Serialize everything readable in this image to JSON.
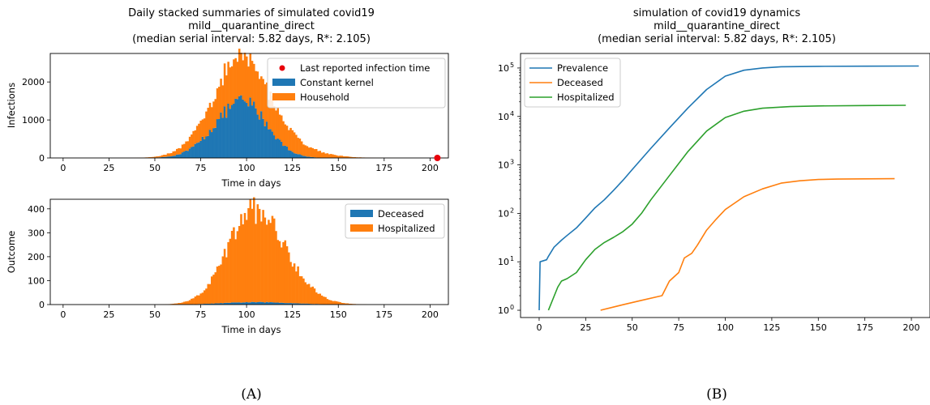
{
  "chart_data": [
    {
      "id": "infections",
      "type": "bar",
      "stacked": true,
      "title_lines": [
        "Daily stacked summaries of simulated covid19",
        "mild__quarantine_direct",
        "(median serial interval: 5.82 days, R*: 2.105)"
      ],
      "xlabel": "Time in days",
      "ylabel": "Infections",
      "xlim": [
        -7,
        210
      ],
      "ylim": [
        0,
        2750
      ],
      "xticks": [
        0,
        25,
        50,
        75,
        100,
        125,
        150,
        175,
        200
      ],
      "yticks": [
        0,
        1000,
        2000
      ],
      "legend_position": "top-right",
      "series": [
        {
          "name": "Constant kernel",
          "color": "#1f77b4",
          "peak_x": 98,
          "peak_y": 1480,
          "sigma_left": 15,
          "sigma_right": 13
        },
        {
          "name": "Household",
          "color": "#ff7f0e",
          "peak_x": 97,
          "peak_y": 1150,
          "sigma_left": 17,
          "sigma_right": 22
        }
      ],
      "marker": {
        "name": "Last reported infection time",
        "x": 204,
        "y": 0,
        "color": "#e8000b"
      }
    },
    {
      "id": "outcome",
      "type": "bar",
      "stacked": true,
      "xlabel": "Time in days",
      "ylabel": "Outcome",
      "xlim": [
        -7,
        210
      ],
      "ylim": [
        0,
        440
      ],
      "xticks": [
        0,
        25,
        50,
        75,
        100,
        125,
        150,
        175,
        200
      ],
      "yticks": [
        0,
        100,
        200,
        300,
        400
      ],
      "legend_position": "top-right",
      "series": [
        {
          "name": "Deceased",
          "color": "#1f77b4",
          "peak_x": 105,
          "peak_y": 10,
          "sigma_left": 18,
          "sigma_right": 20
        },
        {
          "name": "Hospitalized",
          "color": "#ff7f0e",
          "peak_x": 104,
          "peak_y": 385,
          "sigma_left": 14,
          "sigma_right": 17
        }
      ]
    },
    {
      "id": "dynamics",
      "type": "line",
      "yscale": "log",
      "title_lines": [
        "simulation of covid19 dynamics",
        "mild__quarantine_direct",
        "(median serial interval: 5.82 days, R*: 2.105)"
      ],
      "xlim": [
        -10,
        210
      ],
      "ylim_log10": [
        -0.15,
        5.3
      ],
      "xticks": [
        0,
        25,
        50,
        75,
        100,
        125,
        150,
        175,
        200
      ],
      "ytick_labels": [
        "10",
        "10",
        "10",
        "10",
        "10",
        "10"
      ],
      "ytick_exponents": [
        "0",
        "1",
        "2",
        "3",
        "4",
        "5"
      ],
      "legend_position": "top-left",
      "series": [
        {
          "name": "Prevalence",
          "color": "#1f77b4",
          "x": [
            0,
            0.5,
            4,
            5,
            8,
            12,
            15,
            20,
            25,
            30,
            35,
            40,
            45,
            50,
            60,
            70,
            80,
            90,
            100,
            110,
            120,
            130,
            150,
            175,
            204
          ],
          "y": [
            1,
            10,
            11,
            13,
            20,
            28,
            35,
            50,
            80,
            130,
            190,
            300,
            480,
            800,
            2200,
            5800,
            15000,
            36000,
            68000,
            90000,
            100000,
            106000,
            108000,
            109000,
            110000
          ]
        },
        {
          "name": "Deceased",
          "color": "#ff7f0e",
          "x": [
            33,
            45,
            55,
            66,
            70,
            75,
            78,
            82,
            85,
            90,
            95,
            100,
            110,
            120,
            130,
            140,
            150,
            160,
            175,
            191
          ],
          "y": [
            1,
            1.3,
            1.6,
            2,
            4,
            6,
            12,
            15,
            22,
            45,
            75,
            120,
            220,
            320,
            420,
            470,
            500,
            510,
            515,
            520
          ]
        },
        {
          "name": "Hospitalized",
          "color": "#2ca02c",
          "x": [
            5,
            10,
            12,
            15,
            20,
            25,
            30,
            35,
            40,
            45,
            50,
            55,
            60,
            70,
            80,
            90,
            100,
            110,
            120,
            135,
            150,
            175,
            197
          ],
          "y": [
            1,
            3,
            4,
            4.5,
            6,
            11,
            18,
            25,
            32,
            42,
            60,
            100,
            190,
            600,
            1900,
            5000,
            9500,
            12800,
            14800,
            16000,
            16500,
            16800,
            17000
          ]
        }
      ]
    }
  ],
  "panel_labels": {
    "a": "(A)",
    "b": "(B)"
  }
}
